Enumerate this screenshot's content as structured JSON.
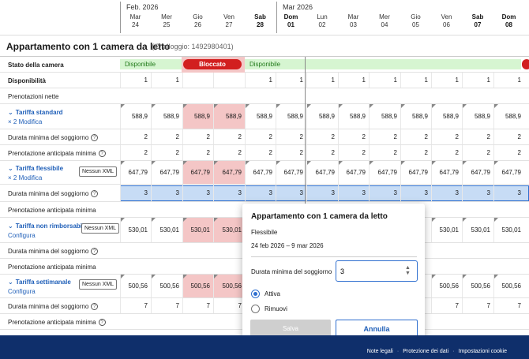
{
  "header": {
    "months": [
      {
        "label": "Feb. 2026"
      },
      {
        "label": "Mar 2026"
      }
    ],
    "days": [
      {
        "dow": "Mar",
        "num": "24"
      },
      {
        "dow": "Mer",
        "num": "25"
      },
      {
        "dow": "Gio",
        "num": "26"
      },
      {
        "dow": "Ven",
        "num": "27"
      },
      {
        "dow": "Sab",
        "num": "28"
      },
      {
        "dow": "Dom",
        "num": "01"
      },
      {
        "dow": "Lun",
        "num": "02"
      },
      {
        "dow": "Mar",
        "num": "03"
      },
      {
        "dow": "Mer",
        "num": "04"
      },
      {
        "dow": "Gio",
        "num": "05"
      },
      {
        "dow": "Ven",
        "num": "06"
      },
      {
        "dow": "Sab",
        "num": "07"
      },
      {
        "dow": "Dom",
        "num": "08"
      }
    ]
  },
  "property": {
    "title": "Appartamento con 1 camera da letto",
    "id_text": "(ID alloggio: 1492980401)"
  },
  "rows": {
    "room_status": {
      "label": "Stato della camera",
      "available": "Disponibile",
      "blocked": "Bloccato"
    },
    "availability": {
      "label": "Disponibilità",
      "values": [
        "1",
        "1",
        "",
        "",
        "1",
        "1",
        "1",
        "1",
        "1",
        "1",
        "1",
        "1",
        "1"
      ]
    },
    "net_bookings": {
      "label": "Prenotazioni nette"
    },
    "standard": {
      "name": "Tariffa standard",
      "link": "× 2 Modifica",
      "prices": [
        "588,9",
        "588,9",
        "588,9",
        "588,9",
        "588,9",
        "588,9",
        "588,9",
        "588,9",
        "588,9",
        "588,9",
        "588,9",
        "588,9",
        "588,9"
      ],
      "min_stay": {
        "label": "Durata minima del soggiorno",
        "values": [
          "2",
          "2",
          "2",
          "2",
          "2",
          "2",
          "2",
          "2",
          "2",
          "2",
          "2",
          "2",
          "2"
        ]
      },
      "advance": {
        "label": "Prenotazione anticipata minima",
        "values": [
          "2",
          "2",
          "2",
          "2",
          "2",
          "2",
          "2",
          "2",
          "2",
          "2",
          "2",
          "2",
          "2"
        ]
      }
    },
    "flexible": {
      "name": "Tariffa flessibile",
      "link": "× 2 Modifica",
      "xml": "Nessun XML",
      "prices": [
        "647,79",
        "647,79",
        "647,79",
        "647,79",
        "647,79",
        "647,79",
        "647,79",
        "647,79",
        "647,79",
        "647,79",
        "647,79",
        "647,79",
        "647,79"
      ],
      "min_stay": {
        "label": "Durata minima del soggiorno",
        "values": [
          "3",
          "3",
          "3",
          "3",
          "3",
          "3",
          "3",
          "3",
          "3",
          "3",
          "3",
          "3",
          "3"
        ]
      },
      "advance": {
        "label": "Prenotazione anticipata minima"
      }
    },
    "nonrefundable": {
      "name": "Tariffa non rimborsabile",
      "link": "Configura",
      "xml": "Nessun XML",
      "prices": [
        "530,01",
        "530,01",
        "530,01",
        "530,01",
        "",
        "",
        "",
        "",
        "",
        "",
        "530,01",
        "530,01",
        "530,01"
      ],
      "min_stay": {
        "label": "Durata minima del soggiorno"
      },
      "advance": {
        "label": "Prenotazione anticipata minima"
      }
    },
    "weekly": {
      "name": "Tariffa settimanale",
      "link": "Configura",
      "xml": "Nessun XML",
      "prices": [
        "500,56",
        "500,56",
        "500,56",
        "500,56",
        "",
        "",
        "",
        "",
        "",
        "",
        "500,56",
        "500,56",
        "500,56"
      ],
      "min_stay": {
        "label": "Durata minima del soggiorno",
        "values": [
          "7",
          "7",
          "7",
          "7",
          "",
          "",
          "",
          "",
          "",
          "",
          "7",
          "7",
          "7"
        ]
      },
      "advance": {
        "label": "Prenotazione anticipata minima"
      }
    }
  },
  "popup": {
    "title": "Appartamento con 1 camera da letto",
    "rate": "Flessibile",
    "dates": "24 feb 2026 – 9 mar 2026",
    "min_stay_label": "Durata minima del soggiorno",
    "min_stay_value": "3",
    "option_active": "Attiva",
    "option_remove": "Rimuovi",
    "save_label": "Salva",
    "cancel_label": "Annulla"
  },
  "footer": {
    "legal": "Note legali",
    "privacy": "Protezione dei dati",
    "cookies": "Impostazioni cookie",
    "separator": "·"
  },
  "colors": {
    "accent": "#2f6fcf",
    "blocked": "#d21f1f",
    "available": "#d6f5d1",
    "footer": "#0f2f6b"
  }
}
